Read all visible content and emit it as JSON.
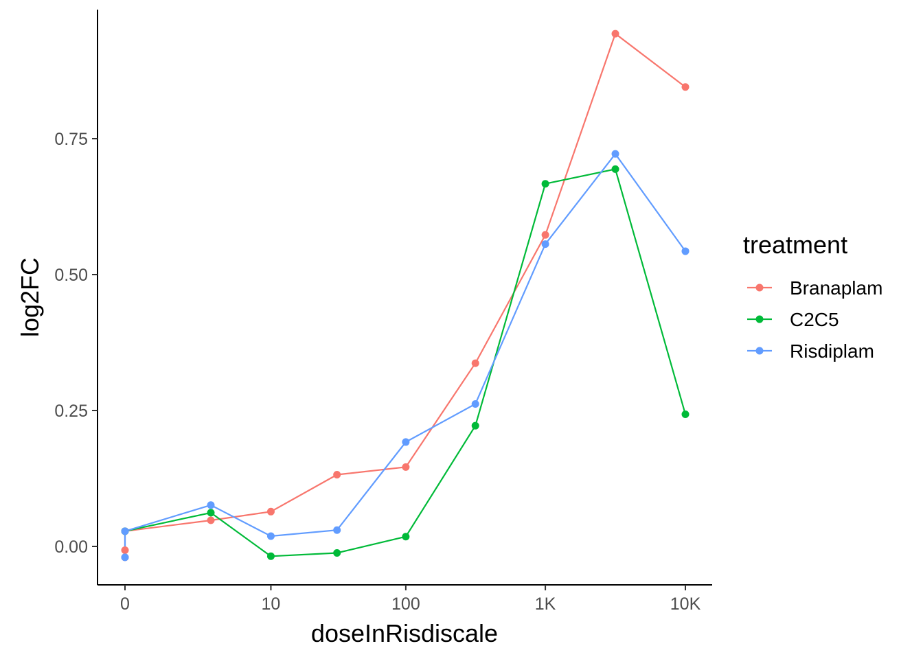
{
  "chart_data": {
    "type": "line",
    "title": "",
    "xlabel": "doseInRisdiscale",
    "ylabel": "log2FC",
    "x_scale": "pseudo-log10",
    "x_ticks": [
      {
        "value": 0,
        "label": "0"
      },
      {
        "value": 10,
        "label": "10"
      },
      {
        "value": 100,
        "label": "100"
      },
      {
        "value": 1000,
        "label": "1K"
      },
      {
        "value": 10000,
        "label": "10K"
      }
    ],
    "y_ticks": [
      {
        "value": 0,
        "label": "0.00"
      },
      {
        "value": 0.25,
        "label": "0.25"
      },
      {
        "value": 0.5,
        "label": "0.50"
      },
      {
        "value": 0.75,
        "label": "0.75"
      }
    ],
    "ylim": [
      -0.07,
      0.99
    ],
    "grid": false,
    "legend": {
      "title": "treatment",
      "position": "right"
    },
    "series": [
      {
        "name": "Branaplam",
        "color": "#F8766D",
        "points": [
          [
            0,
            -0.007
          ],
          [
            0,
            -0.02
          ],
          [
            0,
            0.028
          ],
          [
            3.1,
            0.048
          ],
          [
            10,
            0.064
          ],
          [
            31.6,
            0.132
          ],
          [
            100,
            0.146
          ],
          [
            316,
            0.337
          ],
          [
            1000,
            0.573
          ],
          [
            3162,
            0.943
          ],
          [
            10000,
            0.845
          ]
        ]
      },
      {
        "name": "C2C5",
        "color": "#00BA38",
        "points": [
          [
            0,
            0.028
          ],
          [
            3.1,
            0.062
          ],
          [
            10,
            -0.018
          ],
          [
            31.6,
            -0.012
          ],
          [
            100,
            0.018
          ],
          [
            316,
            0.222
          ],
          [
            1000,
            0.667
          ],
          [
            3162,
            0.694
          ],
          [
            10000,
            0.243
          ]
        ]
      },
      {
        "name": "Risdiplam",
        "color": "#619CFF",
        "points": [
          [
            0,
            -0.02
          ],
          [
            0,
            0.028
          ],
          [
            3.1,
            0.076
          ],
          [
            10,
            0.019
          ],
          [
            31.6,
            0.03
          ],
          [
            100,
            0.192
          ],
          [
            316,
            0.262
          ],
          [
            1000,
            0.556
          ],
          [
            3162,
            0.722
          ],
          [
            10000,
            0.543
          ]
        ]
      }
    ]
  }
}
